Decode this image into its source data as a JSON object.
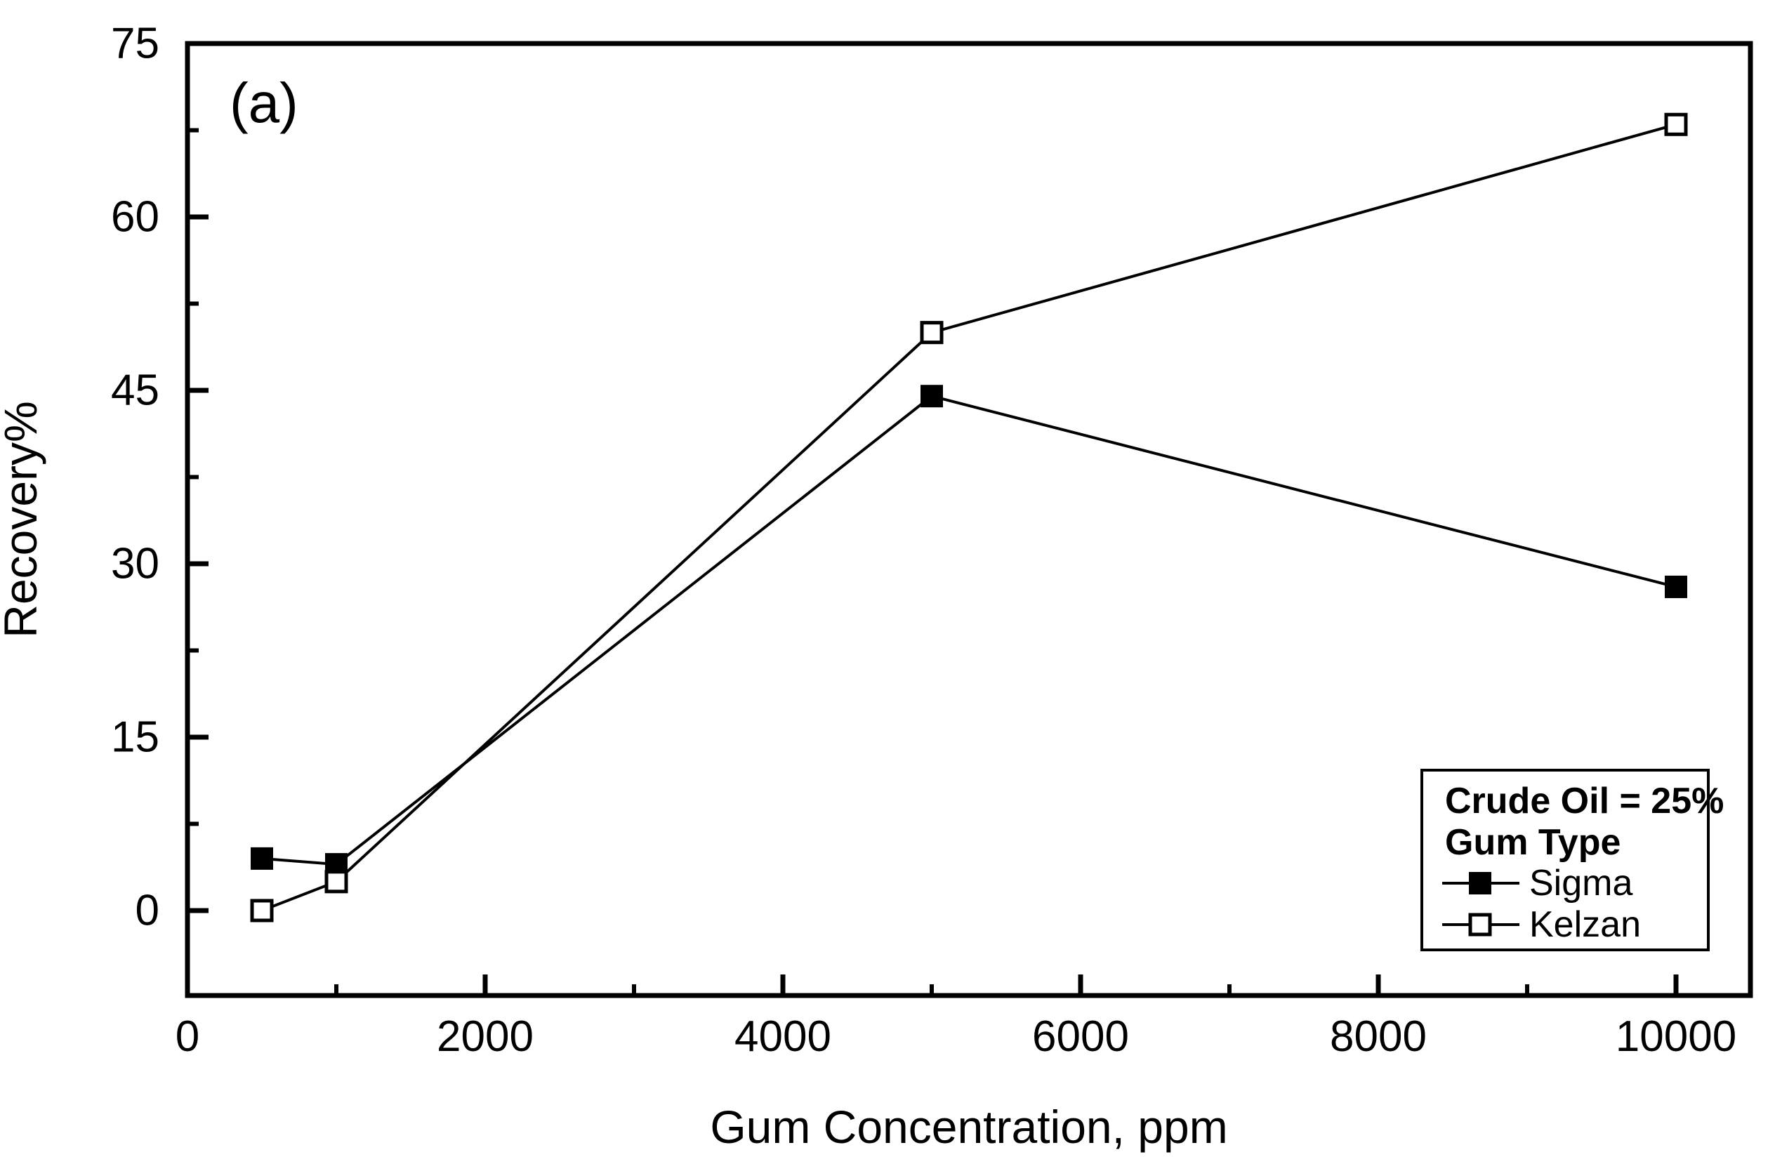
{
  "chart_data": {
    "type": "line",
    "panel_label": "(a)",
    "xlabel": "Gum Concentration, ppm",
    "ylabel": "Recovery%",
    "xlim": [
      0,
      10500
    ],
    "ylim": [
      -7.35,
      75
    ],
    "grid": false,
    "x_ticks_major": [
      0,
      2000,
      4000,
      6000,
      8000,
      10000
    ],
    "x_ticks_minor": [
      1000,
      3000,
      5000,
      7000,
      9000
    ],
    "y_ticks_major": [
      0,
      15,
      30,
      45,
      60,
      75
    ],
    "y_ticks_minor": [
      7.5,
      22.5,
      37.5,
      52.5,
      67.5
    ],
    "x": [
      500,
      1000,
      5000,
      10000
    ],
    "series": [
      {
        "name": "Sigma",
        "marker": "filled-square",
        "values": [
          4.5,
          4,
          44.5,
          28
        ]
      },
      {
        "name": "Kelzan",
        "marker": "open-square",
        "values": [
          0,
          2.5,
          50,
          68
        ]
      }
    ],
    "legend": {
      "position": "bottom-right",
      "title_lines": [
        "Crude Oil = 25%",
        "Gum Type"
      ],
      "entries": [
        "Sigma",
        "Kelzan"
      ]
    },
    "colors": {
      "foreground": "#000000",
      "background": "#ffffff"
    }
  }
}
